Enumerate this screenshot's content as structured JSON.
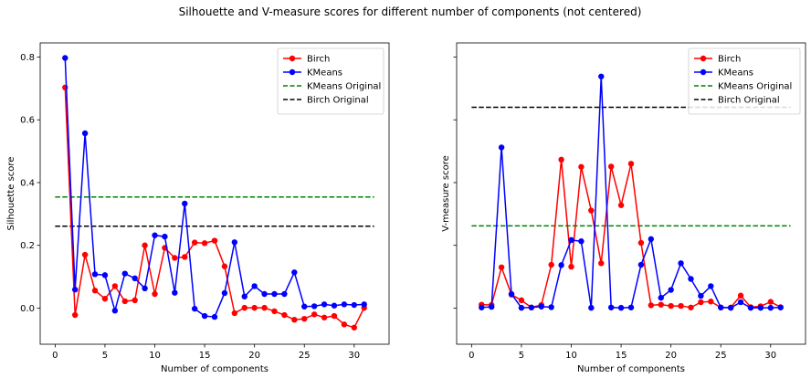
{
  "figure": {
    "title": "Silhouette and V-measure scores for different number of components (not centered)"
  },
  "chart_data": [
    {
      "type": "line",
      "title": "",
      "xlabel": "Number of components",
      "ylabel": "Silhouette score",
      "xlim": [
        -1.5,
        33.5
      ],
      "ylim": [
        -0.115,
        0.845
      ],
      "xticks": [
        0,
        5,
        10,
        15,
        20,
        25,
        30
      ],
      "yticks": [
        0.0,
        0.2,
        0.4,
        0.6,
        0.8
      ],
      "ytick_labels": [
        "0.0",
        "0.2",
        "0.4",
        "0.6",
        "0.8"
      ],
      "show_ytick_labels": true,
      "grid": false,
      "legend_position": "top-right",
      "x": [
        1,
        2,
        3,
        4,
        5,
        6,
        7,
        8,
        9,
        10,
        11,
        12,
        13,
        14,
        15,
        16,
        17,
        18,
        19,
        20,
        21,
        22,
        23,
        24,
        25,
        26,
        27,
        28,
        29,
        30,
        31
      ],
      "series": [
        {
          "name": "Birch",
          "color": "#ff0000",
          "style": "line-marker",
          "values": [
            0.703,
            -0.022,
            0.17,
            0.056,
            0.03,
            0.07,
            0.022,
            0.025,
            0.2,
            0.045,
            0.192,
            0.16,
            0.163,
            0.209,
            0.207,
            0.215,
            0.133,
            -0.016,
            0.001,
            0.001,
            0.001,
            -0.01,
            -0.022,
            -0.037,
            -0.034,
            -0.02,
            -0.03,
            -0.025,
            -0.052,
            -0.062,
            0.001
          ]
        },
        {
          "name": "KMeans",
          "color": "#0000ff",
          "style": "line-marker",
          "values": [
            0.797,
            0.059,
            0.557,
            0.108,
            0.105,
            -0.008,
            0.11,
            0.095,
            0.063,
            0.232,
            0.228,
            0.049,
            0.333,
            -0.002,
            -0.025,
            -0.028,
            0.048,
            0.21,
            0.037,
            0.07,
            0.045,
            0.045,
            0.045,
            0.114,
            0.005,
            0.006,
            0.012,
            0.008,
            0.012,
            0.01,
            0.012
          ]
        },
        {
          "name": "KMeans Original",
          "color": "#008000",
          "style": "dashed",
          "constant": 0.354
        },
        {
          "name": "Birch Original",
          "color": "#000000",
          "style": "dashed",
          "constant": 0.261
        }
      ]
    },
    {
      "type": "line",
      "title": "",
      "xlabel": "Number of components",
      "ylabel": "V-measure score",
      "xlim": [
        -1.5,
        33.5
      ],
      "ylim": [
        -0.115,
        0.845
      ],
      "xticks": [
        0,
        5,
        10,
        15,
        20,
        25,
        30
      ],
      "yticks": [
        0.0,
        0.2,
        0.4,
        0.6,
        0.8
      ],
      "ytick_labels": [
        "",
        "",
        "",
        "",
        ""
      ],
      "show_ytick_labels": false,
      "grid": false,
      "legend_position": "top-right",
      "x": [
        1,
        2,
        3,
        4,
        5,
        6,
        7,
        8,
        9,
        10,
        11,
        12,
        13,
        14,
        15,
        16,
        17,
        18,
        19,
        20,
        21,
        22,
        23,
        24,
        25,
        26,
        27,
        28,
        29,
        30,
        31
      ],
      "series": [
        {
          "name": "Birch",
          "color": "#ff0000",
          "style": "line-marker",
          "values": [
            0.011,
            0.01,
            0.13,
            0.043,
            0.025,
            0.002,
            0.01,
            0.138,
            0.473,
            0.132,
            0.45,
            0.311,
            0.143,
            0.451,
            0.328,
            0.46,
            0.208,
            0.009,
            0.011,
            0.007,
            0.007,
            0.002,
            0.019,
            0.021,
            0.002,
            0.002,
            0.04,
            0.003,
            0.006,
            0.02,
            0.003
          ]
        },
        {
          "name": "KMeans",
          "color": "#0000ff",
          "style": "line-marker",
          "values": [
            0.002,
            0.004,
            0.512,
            0.045,
            0.001,
            0.002,
            0.005,
            0.003,
            0.137,
            0.217,
            0.213,
            0.001,
            0.738,
            0.002,
            0.001,
            0.002,
            0.138,
            0.22,
            0.033,
            0.058,
            0.143,
            0.093,
            0.039,
            0.07,
            0.002,
            0.001,
            0.019,
            0.001,
            0.001,
            0.001,
            0.002
          ]
        },
        {
          "name": "KMeans Original",
          "color": "#008000",
          "style": "dashed",
          "constant": 0.262
        },
        {
          "name": "Birch Original",
          "color": "#000000",
          "style": "dashed",
          "constant": 0.64
        }
      ]
    }
  ]
}
